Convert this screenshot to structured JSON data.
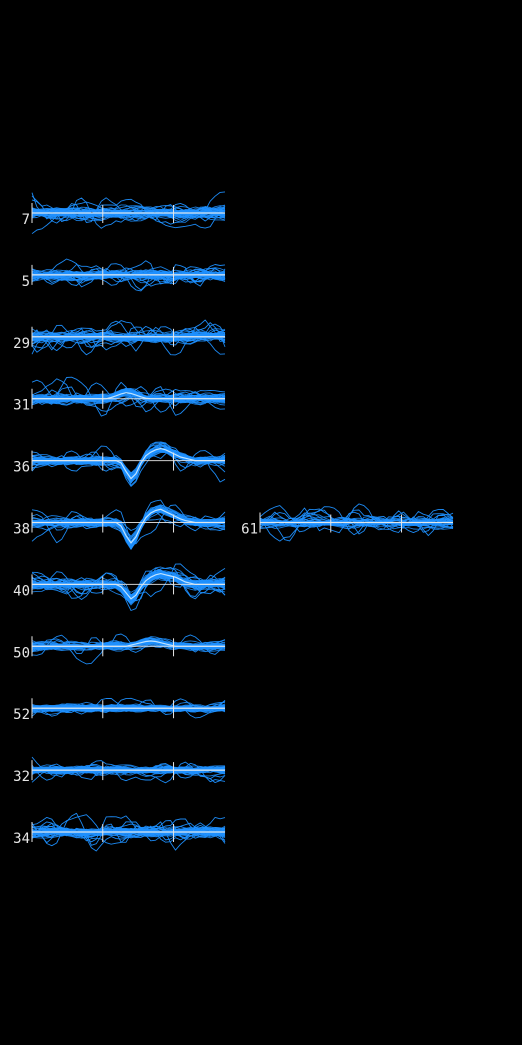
{
  "chart_data": {
    "type": "line",
    "title": "",
    "xlabel": "",
    "ylabel": "",
    "grid": false,
    "colors": {
      "background": "#000000",
      "trace": "#1e90ff",
      "axis": "#e6e6e6",
      "label": "#e6e6e6"
    },
    "samples": 40,
    "xlim": [
      0,
      39
    ],
    "ylim": [
      -1,
      1
    ],
    "channels": [
      {
        "id": "7",
        "column": 0,
        "row": 0,
        "n_traces": 40,
        "mean": [
          0,
          0,
          0,
          0,
          0,
          0,
          0,
          0,
          0,
          0,
          0,
          0,
          0,
          0,
          0,
          0,
          0,
          0,
          0,
          0,
          0,
          0,
          0,
          0,
          0,
          0,
          0,
          0,
          0,
          0,
          0,
          0,
          0,
          0,
          0,
          0,
          0,
          0,
          0,
          0
        ],
        "noise": 0.22,
        "outliers": 4
      },
      {
        "id": "5",
        "column": 0,
        "row": 1,
        "n_traces": 40,
        "mean": [
          0,
          0,
          0,
          0,
          0,
          0,
          0,
          0,
          0,
          0,
          0,
          0,
          0,
          0,
          0,
          0,
          0,
          0,
          0,
          0,
          0,
          0,
          0,
          0,
          0,
          0,
          0,
          0,
          0,
          0,
          0,
          0,
          0,
          0,
          0,
          0,
          0,
          0,
          0,
          0
        ],
        "noise": 0.2,
        "outliers": 5
      },
      {
        "id": "29",
        "column": 0,
        "row": 2,
        "n_traces": 40,
        "mean": [
          0,
          0,
          0,
          0,
          0,
          0,
          0,
          0,
          0,
          0,
          0,
          0,
          0,
          0,
          0,
          0,
          0,
          0,
          0,
          0,
          0,
          0,
          0,
          0,
          0,
          0,
          0,
          0,
          0,
          0,
          0,
          0,
          0,
          0,
          0,
          0,
          0,
          0,
          0,
          0
        ],
        "noise": 0.2,
        "outliers": 6
      },
      {
        "id": "31",
        "column": 0,
        "row": 3,
        "n_traces": 40,
        "mean": [
          0,
          0,
          0,
          0,
          0,
          0,
          0,
          0,
          0,
          0,
          0,
          0,
          0,
          0,
          0,
          0,
          0.05,
          0.12,
          0.2,
          0.25,
          0.22,
          0.15,
          0.08,
          0.02,
          0,
          0,
          0,
          0,
          0,
          0,
          0,
          0,
          0,
          0,
          0,
          0,
          0,
          0,
          0,
          0
        ],
        "noise": 0.18,
        "outliers": 5
      },
      {
        "id": "36",
        "column": 0,
        "row": 4,
        "n_traces": 40,
        "mean": [
          0,
          0,
          0,
          0,
          0,
          0,
          0,
          0,
          0,
          0,
          0,
          0,
          0,
          0,
          0,
          0,
          0,
          0,
          -0.1,
          -0.45,
          -0.75,
          -0.55,
          -0.1,
          0.2,
          0.35,
          0.45,
          0.5,
          0.45,
          0.35,
          0.25,
          0.15,
          0.1,
          0.05,
          0,
          0,
          0,
          0,
          0,
          0,
          0
        ],
        "noise": 0.16,
        "outliers": 4
      },
      {
        "id": "38",
        "column": 0,
        "row": 5,
        "n_traces": 40,
        "mean": [
          0,
          0,
          0,
          0,
          0,
          0,
          0,
          0,
          0,
          0,
          0,
          0,
          0,
          0,
          0,
          0,
          0,
          0,
          -0.15,
          -0.55,
          -0.85,
          -0.6,
          -0.15,
          0.2,
          0.4,
          0.5,
          0.55,
          0.45,
          0.35,
          0.25,
          0.15,
          0.08,
          0.04,
          0,
          0,
          0,
          0,
          0,
          0,
          0
        ],
        "noise": 0.16,
        "outliers": 4
      },
      {
        "id": "40",
        "column": 0,
        "row": 6,
        "n_traces": 40,
        "mean": [
          0,
          0,
          0,
          0,
          0,
          0,
          0,
          0,
          0,
          0,
          0,
          0,
          0,
          0,
          0,
          0,
          0,
          0,
          -0.1,
          -0.35,
          -0.6,
          -0.45,
          -0.1,
          0.15,
          0.3,
          0.4,
          0.45,
          0.4,
          0.35,
          0.3,
          0.2,
          0.1,
          0.05,
          0,
          0,
          0,
          0,
          0,
          0,
          0
        ],
        "noise": 0.2,
        "outliers": 6
      },
      {
        "id": "50",
        "column": 0,
        "row": 7,
        "n_traces": 40,
        "mean": [
          0,
          0,
          0,
          0,
          0,
          0,
          0,
          0,
          0,
          0,
          0,
          0,
          0,
          0,
          0,
          0,
          0,
          0,
          0,
          0,
          0.05,
          0.1,
          0.15,
          0.2,
          0.22,
          0.2,
          0.15,
          0.1,
          0.05,
          0,
          0,
          0,
          0,
          0,
          0,
          0,
          0,
          0,
          0,
          0
        ],
        "noise": 0.16,
        "outliers": 3
      },
      {
        "id": "52",
        "column": 0,
        "row": 8,
        "n_traces": 40,
        "mean": [
          0,
          0,
          0,
          0,
          0,
          0,
          0,
          0,
          0,
          0,
          0,
          0,
          0,
          0,
          0,
          0,
          0,
          0,
          0,
          0,
          0,
          0,
          0,
          0,
          0,
          0,
          0,
          0,
          0,
          0,
          0,
          0,
          0,
          0,
          0,
          0,
          0,
          0,
          0,
          0
        ],
        "noise": 0.14,
        "outliers": 2
      },
      {
        "id": "32",
        "column": 0,
        "row": 9,
        "n_traces": 40,
        "mean": [
          0,
          0,
          0,
          0,
          0,
          0,
          0,
          0,
          0,
          0,
          0,
          0,
          0,
          0,
          0,
          0,
          0,
          0,
          0,
          0,
          0,
          0,
          0,
          0,
          0,
          0,
          0,
          0,
          0,
          0,
          0,
          0,
          0,
          0,
          0,
          0,
          0,
          0,
          0,
          0
        ],
        "noise": 0.16,
        "outliers": 3
      },
      {
        "id": "34",
        "column": 0,
        "row": 10,
        "n_traces": 40,
        "mean": [
          0,
          0,
          0,
          0,
          0,
          0,
          0,
          0,
          0,
          0,
          0,
          0,
          0,
          0,
          0,
          0,
          0,
          0,
          0,
          0,
          0,
          0,
          0,
          0,
          0,
          0,
          0,
          0,
          0,
          0,
          0,
          0,
          0,
          0,
          0,
          0,
          0,
          0,
          0,
          0
        ],
        "noise": 0.2,
        "outliers": 6
      },
      {
        "id": "61",
        "column": 1,
        "row": 5,
        "n_traces": 30,
        "mean": [
          0,
          0,
          0,
          0,
          0,
          0,
          0,
          0,
          0,
          0,
          0,
          0,
          0,
          0,
          0,
          0,
          0,
          0,
          0,
          0,
          0,
          0,
          0,
          0,
          0,
          0,
          0,
          0,
          0,
          0,
          0,
          0,
          0,
          0,
          0,
          0,
          0,
          0,
          0,
          0
        ],
        "noise": 0.2,
        "outliers": 6
      }
    ]
  }
}
